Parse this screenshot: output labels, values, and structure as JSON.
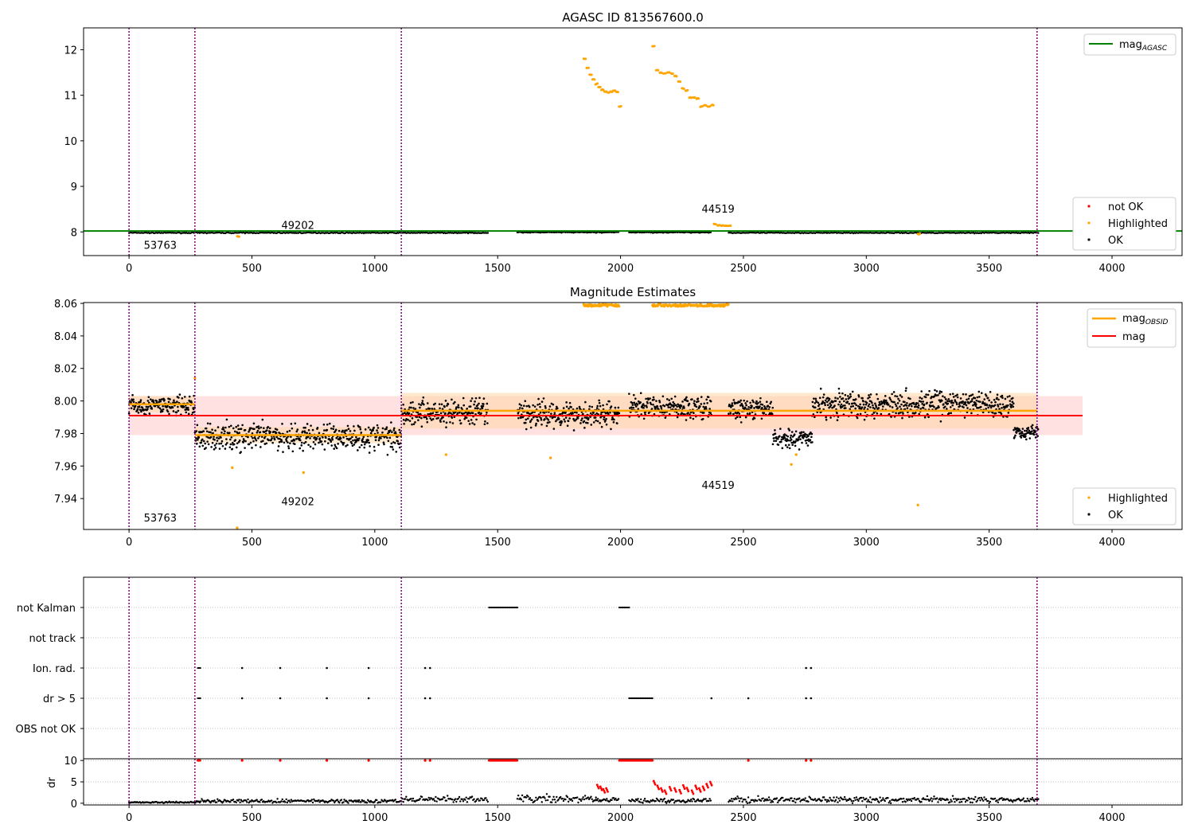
{
  "colors": {
    "ok": "#000000",
    "highlighted": "#ffa500",
    "not_ok": "#ff0000",
    "agasc_line": "#008000",
    "mag_line": "#ff0000",
    "obsid_line": "#ffa500",
    "obs_boundary": "#800080",
    "band_red": "#ffb3b3",
    "band_orange": "#ffd9a8"
  },
  "chart_data": [
    {
      "type": "scatter",
      "title": "AGASC ID 813567600.0",
      "xlim": [
        -185,
        4285
      ],
      "ylim": [
        7.48,
        12.48
      ],
      "xticks": [
        0,
        500,
        1000,
        1500,
        2000,
        2500,
        3000,
        3500,
        4000
      ],
      "yticks": [
        8,
        9,
        10,
        11,
        12
      ],
      "obs_boundaries": [
        0,
        268,
        1108,
        3695
      ],
      "obsid_labels": [
        {
          "text": "53763",
          "x": 60,
          "y": 7.63
        },
        {
          "text": "49202",
          "x": 620,
          "y": 8.07
        },
        {
          "text": "44519",
          "x": 2330,
          "y": 8.42
        }
      ],
      "mag_agasc": 8.02,
      "ok_segments": [
        [
          0,
          1460,
          7.98
        ],
        [
          1580,
          1995,
          7.99
        ],
        [
          2035,
          2370,
          7.99
        ],
        [
          2440,
          3700,
          7.98
        ]
      ],
      "highlighted_series": [
        {
          "x": [
            1850,
            1862,
            1874,
            1886,
            1898,
            1910,
            1922,
            1934,
            1946,
            1958,
            1970,
            1982,
            1994
          ],
          "y": [
            11.8,
            11.6,
            11.45,
            11.35,
            11.25,
            11.18,
            11.12,
            11.08,
            11.06,
            11.08,
            11.1,
            11.08,
            10.75
          ]
        },
        {
          "x": [
            2130,
            2145,
            2160,
            2175,
            2190,
            2205,
            2220,
            2235,
            2250,
            2265,
            2280,
            2295,
            2310,
            2325,
            2340,
            2355,
            2370
          ],
          "y": [
            12.07,
            11.55,
            11.5,
            11.48,
            11.5,
            11.48,
            11.42,
            11.3,
            11.15,
            11.1,
            10.95,
            10.95,
            10.93,
            10.75,
            10.78,
            10.75,
            10.78
          ]
        },
        {
          "x": [
            2380,
            2395,
            2410,
            2425,
            2440
          ],
          "y": [
            8.17,
            8.15,
            8.14,
            8.14,
            8.13
          ]
        },
        {
          "x": [
            440,
            3210
          ],
          "y": [
            7.9,
            7.95
          ]
        }
      ],
      "legend": {
        "position": "top-right",
        "entries": [
          "mag_AGASC"
        ]
      },
      "legend2": {
        "position": "bottom-right",
        "entries": [
          "not OK",
          "Highlighted",
          "OK"
        ]
      }
    },
    {
      "type": "scatter",
      "title": "Magnitude Estimates",
      "xlim": [
        -185,
        4285
      ],
      "ylim": [
        7.921,
        8.0605
      ],
      "xticks": [
        0,
        500,
        1000,
        1500,
        2000,
        2500,
        3000,
        3500,
        4000
      ],
      "yticks": [
        7.94,
        7.96,
        7.98,
        8.0,
        8.02,
        8.04,
        8.06
      ],
      "obs_boundaries": [
        0,
        268,
        1108,
        3695
      ],
      "obsid_labels": [
        {
          "text": "53763",
          "x": 60,
          "y": 7.926
        },
        {
          "text": "49202",
          "x": 620,
          "y": 7.936
        },
        {
          "text": "44519",
          "x": 2330,
          "y": 7.946
        }
      ],
      "mag": 7.991,
      "mag_band": [
        7.979,
        8.003
      ],
      "mag_band_x": [
        0,
        3880
      ],
      "obsid_segments": [
        {
          "x": [
            0,
            268
          ],
          "mag": 7.998,
          "band": [
            7.993,
            8.003
          ]
        },
        {
          "x": [
            268,
            1108
          ],
          "mag": 7.979,
          "band": [
            7.974,
            7.984
          ]
        },
        {
          "x": [
            1108,
            3695
          ],
          "mag": 7.994,
          "band": [
            7.983,
            8.005
          ]
        }
      ],
      "ok_regions": [
        {
          "x": [
            0,
            268
          ],
          "center": 7.997,
          "spread": 0.006
        },
        {
          "x": [
            268,
            1108
          ],
          "center": 7.978,
          "spread": 0.008
        },
        {
          "x": [
            1108,
            1460
          ],
          "center": 7.993,
          "spread": 0.008
        },
        {
          "x": [
            1580,
            1995
          ],
          "center": 7.992,
          "spread": 0.008
        },
        {
          "x": [
            2035,
            2370
          ],
          "center": 7.996,
          "spread": 0.007
        },
        {
          "x": [
            2440,
            2620
          ],
          "center": 7.995,
          "spread": 0.006
        },
        {
          "x": [
            2620,
            2780
          ],
          "center": 7.977,
          "spread": 0.005
        },
        {
          "x": [
            2780,
            3600
          ],
          "center": 7.998,
          "spread": 0.008
        },
        {
          "x": [
            3600,
            3700
          ],
          "center": 7.981,
          "spread": 0.004
        }
      ],
      "highlighted_points": {
        "x": [
          440,
          710,
          1290,
          1715,
          2695,
          2715,
          3210,
          420,
          268
        ],
        "y": [
          7.922,
          7.956,
          7.967,
          7.965,
          7.961,
          7.967,
          7.936,
          7.959,
          8.014
        ]
      },
      "highlighted_clipped_ranges": [
        [
          1850,
          1995
        ],
        [
          2130,
          2440
        ]
      ],
      "legend": {
        "position": "top-right",
        "entries": [
          "mag_OBSID",
          "mag"
        ]
      },
      "legend2": {
        "position": "bottom-right",
        "entries": [
          "Highlighted",
          "OK"
        ]
      }
    },
    {
      "type": "scatter",
      "title": "",
      "xlim": [
        -185,
        4285
      ],
      "obs_boundaries": [
        0,
        268,
        1108,
        3695
      ],
      "categories": [
        "not Kalman",
        "not track",
        "Ion. rad.",
        "dr > 5",
        "OBS not OK"
      ],
      "flag_points": {
        "not Kalman": [
          [
            1465,
            1580
          ],
          [
            1995,
            2035
          ]
        ],
        "not track": [],
        "Ion. rad.": [
          [
            280,
            290
          ],
          460,
          615,
          805,
          975,
          1205,
          1225,
          2755,
          2775
        ],
        "dr > 5": [
          [
            280,
            290
          ],
          460,
          615,
          805,
          975,
          1205,
          1225,
          [
            2035,
            2130
          ],
          2370,
          2520,
          2755,
          2775
        ],
        "OBS not OK": []
      }
    },
    {
      "type": "scatter",
      "ylabel": "dr",
      "xlim": [
        -185,
        4285
      ],
      "ylim": [
        -0.4,
        10.4
      ],
      "xticks": [
        0,
        500,
        1000,
        1500,
        2000,
        2500,
        3000,
        3500,
        4000
      ],
      "yticks": [
        0,
        5,
        10
      ],
      "obs_boundaries": [
        0,
        268,
        1108,
        3695
      ],
      "red_at_10": [
        [
          280,
          290
        ],
        460,
        615,
        805,
        975,
        1205,
        1225,
        [
          1465,
          1580
        ],
        [
          1995,
          2130
        ],
        2520,
        2755,
        2775
      ],
      "ok_regions": [
        {
          "x": [
            0,
            268
          ],
          "level": 0.2
        },
        {
          "x": [
            268,
            1108
          ],
          "level": 0.5
        },
        {
          "x": [
            1108,
            1460
          ],
          "level": 0.9
        },
        {
          "x": [
            1580,
            1900
          ],
          "level": 1.0
        },
        {
          "x": [
            1900,
            1995
          ],
          "level": 0.7
        },
        {
          "x": [
            2035,
            2370
          ],
          "level": 0.6
        },
        {
          "x": [
            2440,
            3700
          ],
          "level": 0.8
        }
      ],
      "red_raised": {
        "x": [
          1905,
          1918,
          1930,
          1942,
          2135,
          2150,
          2165,
          2180,
          2200,
          2220,
          2240,
          2255,
          2270,
          2290,
          2305,
          2320,
          2335,
          2350,
          2365
        ],
        "y": [
          4.3,
          3.9,
          3.3,
          3.5,
          5.2,
          4.1,
          3.5,
          3.0,
          3.8,
          3.5,
          3.1,
          4.2,
          3.6,
          3.0,
          4.1,
          3.5,
          3.9,
          4.5,
          5.0
        ]
      }
    }
  ],
  "legend_labels": {
    "mag_agasc_main": "mag",
    "mag_agasc_sub": "AGASC",
    "mag_obsid_main": "mag",
    "mag_obsid_sub": "OBSID",
    "mag": "mag",
    "not_ok": "not OK",
    "highlighted": "Highlighted",
    "ok": "OK"
  }
}
